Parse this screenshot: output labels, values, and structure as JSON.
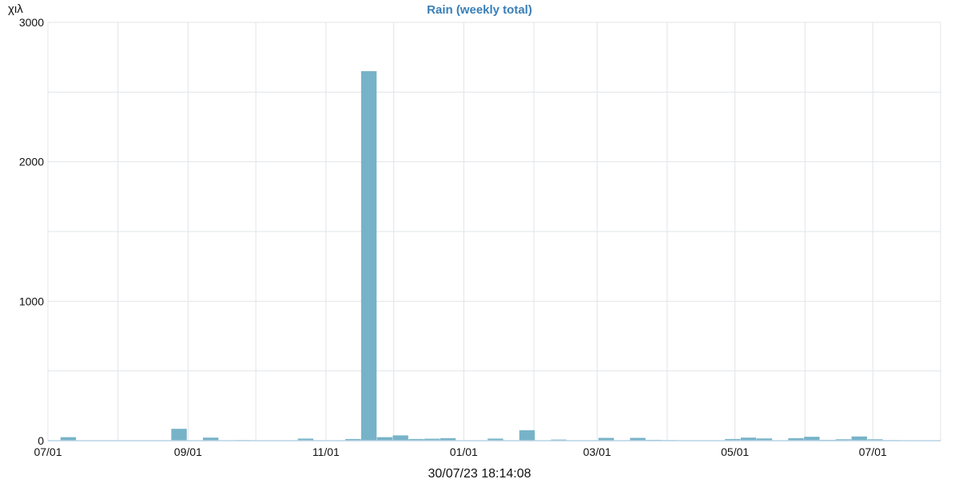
{
  "chart_data": {
    "type": "bar",
    "title": "Rain (weekly total)",
    "unit_label": "χιλ",
    "timestamp": "30/07/23 18:14:08",
    "bar_color": "#77b3c8",
    "ylim": [
      0,
      3000
    ],
    "y_ticks": [
      0,
      1000,
      2000,
      3000
    ],
    "x_start": "2022-07-01",
    "x_end": "2023-07-31",
    "x_ticks": [
      {
        "date": "2022-07-01",
        "label": "07/01"
      },
      {
        "date": "2022-09-01",
        "label": "09/01"
      },
      {
        "date": "2022-11-01",
        "label": "11/01"
      },
      {
        "date": "2023-01-01",
        "label": "01/01"
      },
      {
        "date": "2023-03-01",
        "label": "03/01"
      },
      {
        "date": "2023-05-01",
        "label": "05/01"
      },
      {
        "date": "2023-07-01",
        "label": "07/01"
      }
    ],
    "x_minor_ticks": [
      "2022-08-01",
      "2022-10-01",
      "2022-12-01",
      "2023-02-01",
      "2023-04-01",
      "2023-06-01"
    ],
    "points": [
      {
        "week": "2022-07-10",
        "value": 25
      },
      {
        "week": "2022-08-28",
        "value": 85
      },
      {
        "week": "2022-09-11",
        "value": 22
      },
      {
        "week": "2022-09-25",
        "value": 4
      },
      {
        "week": "2022-10-23",
        "value": 15
      },
      {
        "week": "2022-11-13",
        "value": 12
      },
      {
        "week": "2022-11-20",
        "value": 2650
      },
      {
        "week": "2022-11-27",
        "value": 25
      },
      {
        "week": "2022-12-04",
        "value": 38
      },
      {
        "week": "2022-12-11",
        "value": 12
      },
      {
        "week": "2022-12-18",
        "value": 14
      },
      {
        "week": "2022-12-25",
        "value": 18
      },
      {
        "week": "2023-01-15",
        "value": 15
      },
      {
        "week": "2023-01-29",
        "value": 75
      },
      {
        "week": "2023-02-12",
        "value": 8
      },
      {
        "week": "2023-02-19",
        "value": 3
      },
      {
        "week": "2023-03-05",
        "value": 20
      },
      {
        "week": "2023-03-19",
        "value": 20
      },
      {
        "week": "2023-03-26",
        "value": 6
      },
      {
        "week": "2023-04-02",
        "value": 4
      },
      {
        "week": "2023-04-16",
        "value": 3
      },
      {
        "week": "2023-04-30",
        "value": 12
      },
      {
        "week": "2023-05-07",
        "value": 22
      },
      {
        "week": "2023-05-14",
        "value": 16
      },
      {
        "week": "2023-05-28",
        "value": 18
      },
      {
        "week": "2023-06-04",
        "value": 28
      },
      {
        "week": "2023-06-11",
        "value": 6
      },
      {
        "week": "2023-06-18",
        "value": 10
      },
      {
        "week": "2023-06-25",
        "value": 30
      },
      {
        "week": "2023-07-02",
        "value": 10
      },
      {
        "week": "2023-07-09",
        "value": 4
      }
    ]
  }
}
